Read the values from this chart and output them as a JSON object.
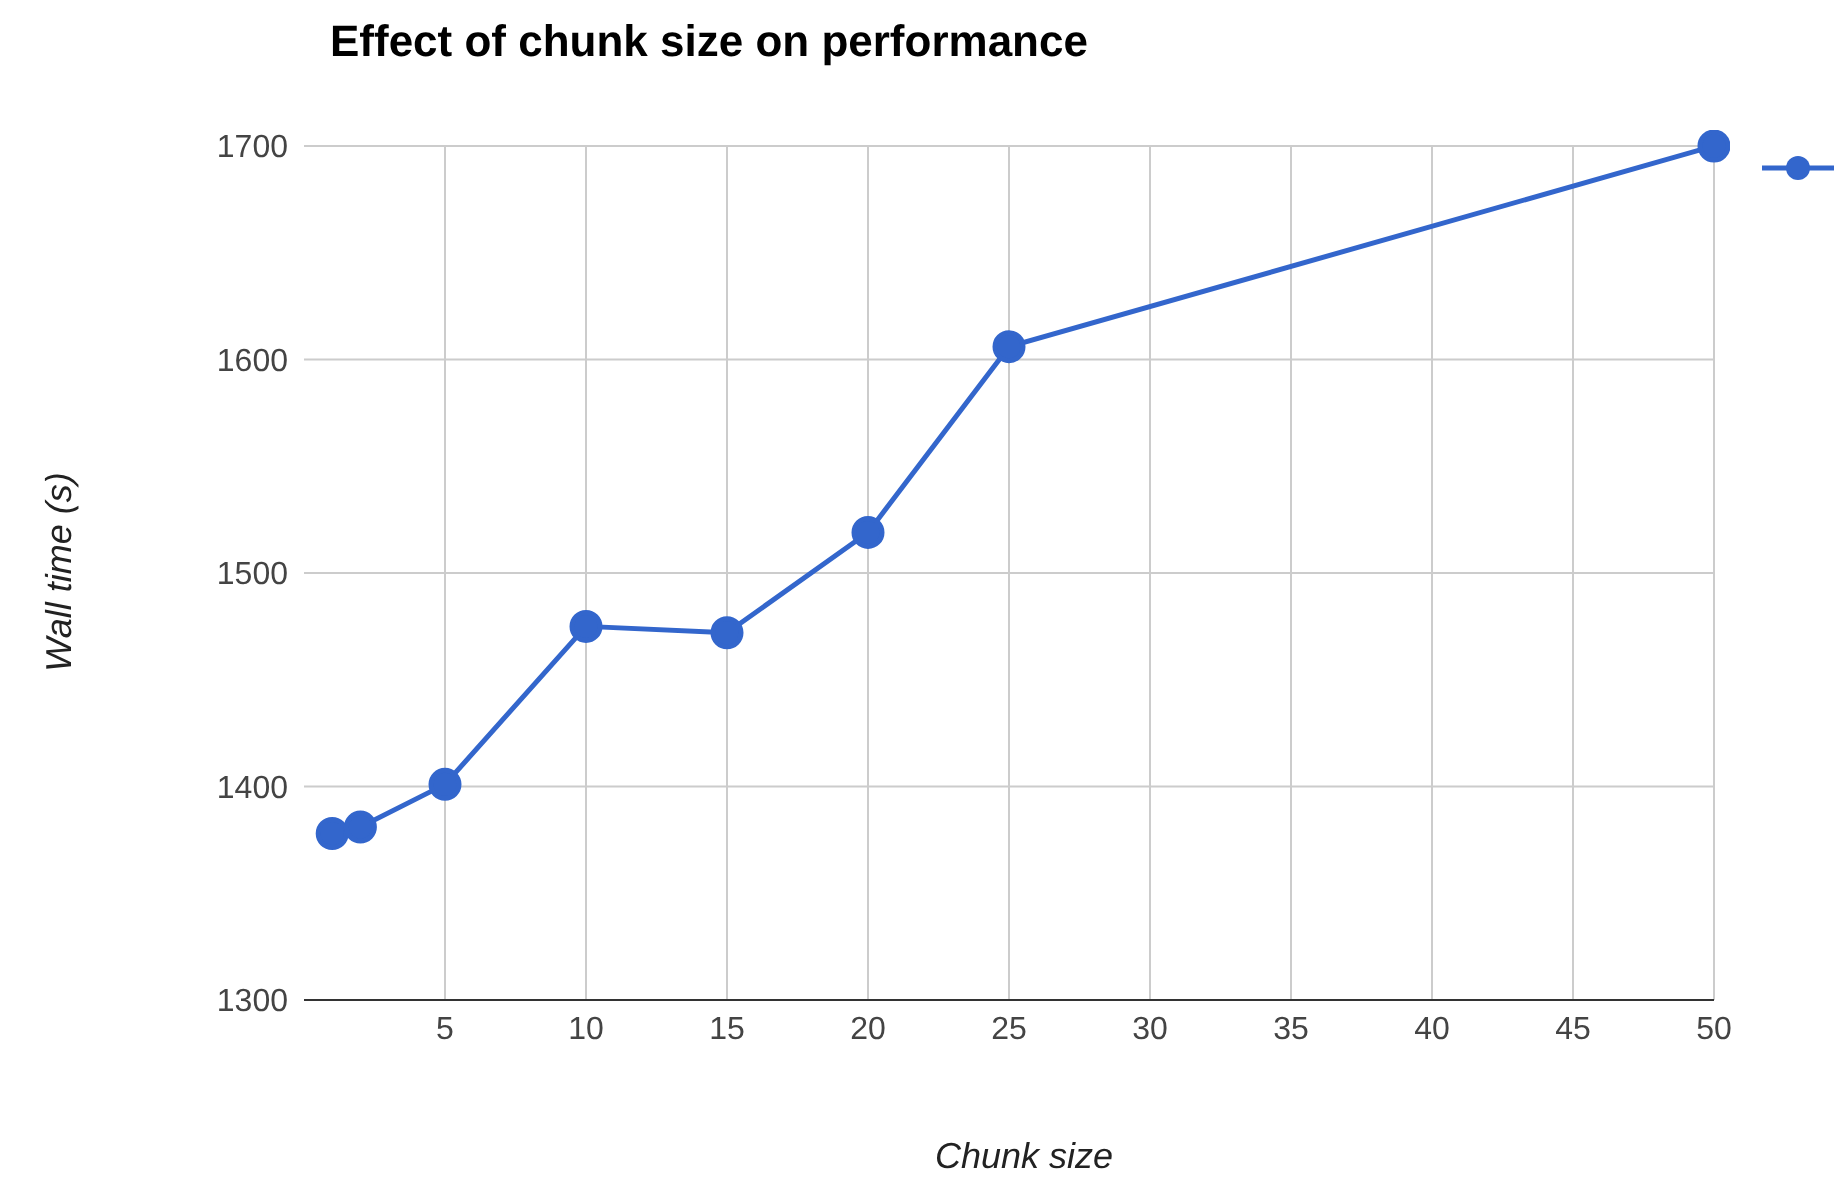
{
  "chart_data": {
    "type": "line",
    "title": "Effect of chunk size on performance",
    "xlabel": "Chunk size",
    "ylabel": "Wall time (s)",
    "x": [
      1,
      2,
      5,
      10,
      15,
      20,
      25,
      50
    ],
    "series": [
      {
        "color": "#3366cc",
        "values": [
          1378,
          1381,
          1401,
          1475,
          1472,
          1519,
          1606,
          1700
        ]
      }
    ],
    "xlim": [
      0,
      50
    ],
    "xticks": [
      5,
      10,
      15,
      20,
      25,
      30,
      35,
      40,
      45,
      50
    ],
    "ylim": [
      1300,
      1700
    ],
    "yticks": [
      1300,
      1400,
      1500,
      1600,
      1700
    ],
    "grid": true,
    "marker": "circle",
    "line_style": "solid"
  }
}
